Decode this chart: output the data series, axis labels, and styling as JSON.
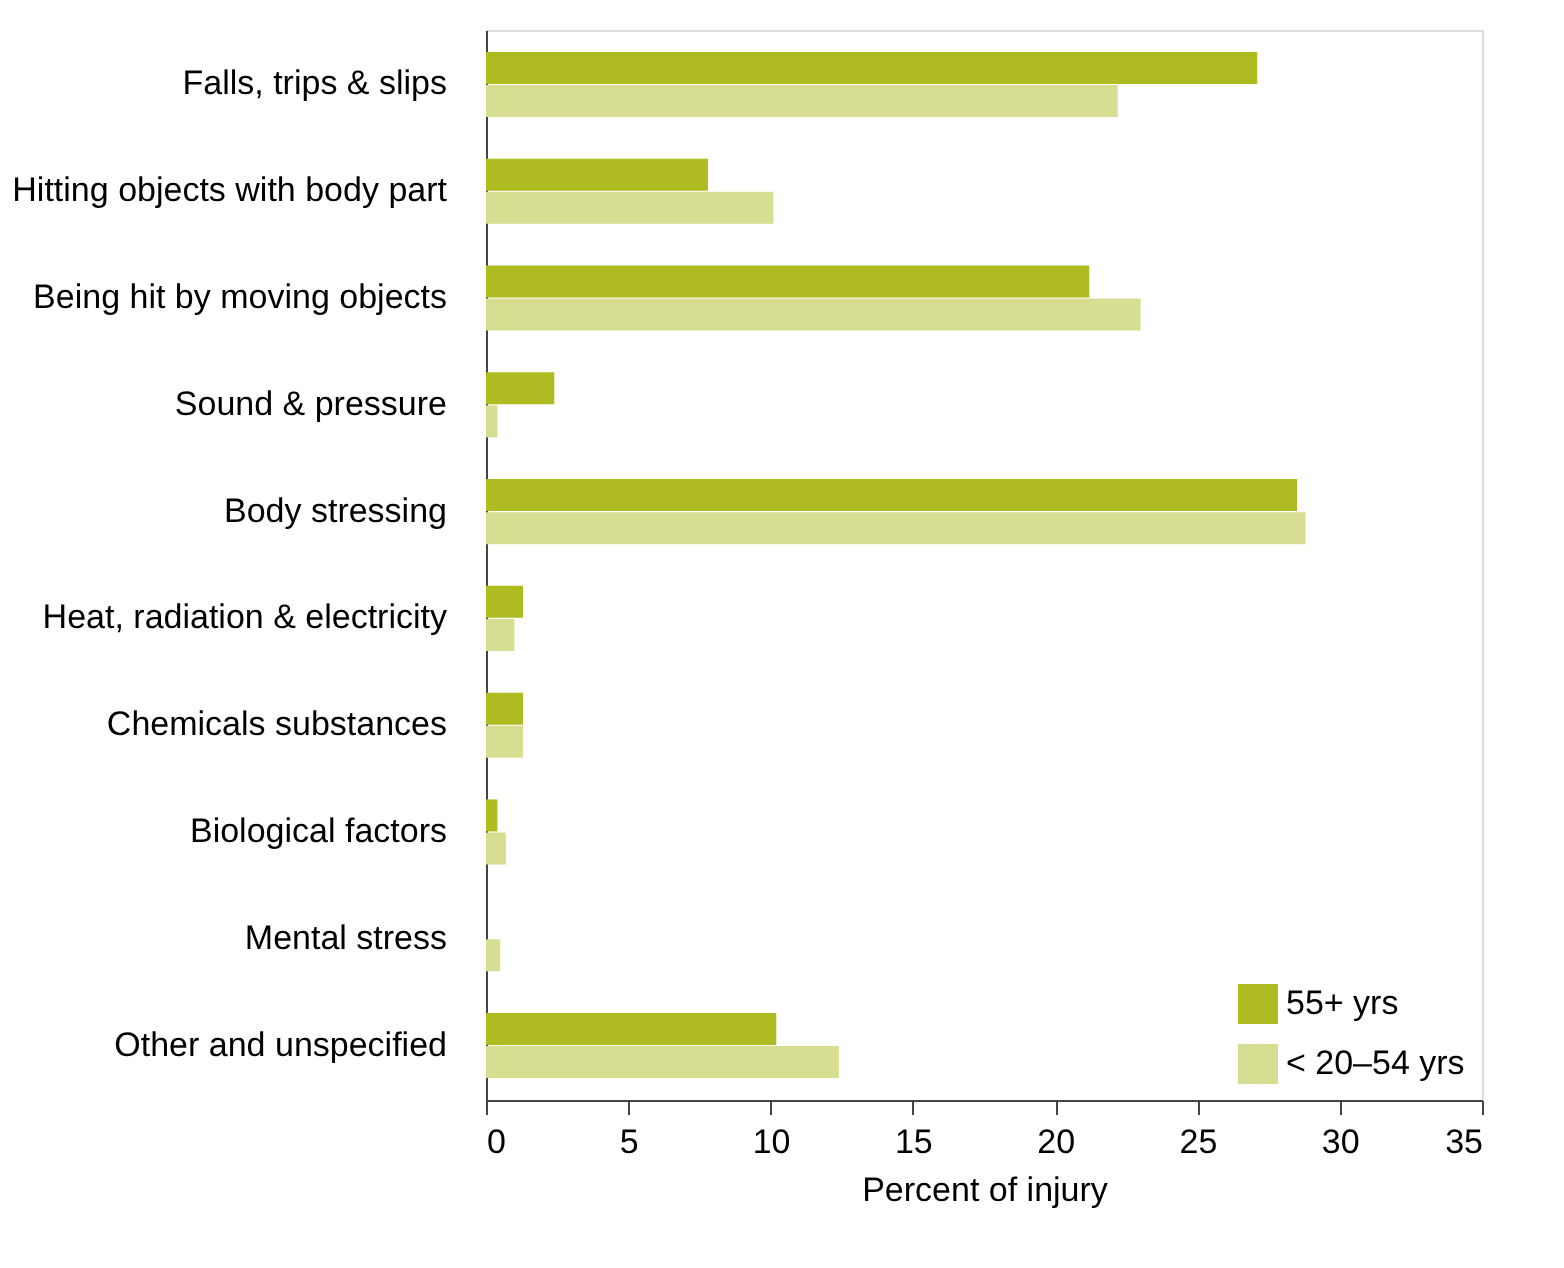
{
  "chart_data": {
    "type": "bar",
    "orientation": "horizontal",
    "xlabel": "Percent of injury",
    "categories": [
      "Falls, trips & slips",
      "Hitting objects with body part",
      "Being  hit by moving objects",
      "Sound & pressure",
      "Body stressing",
      "Heat, radiation & electricity",
      "Chemicals substances",
      "Biological factors",
      "Mental stress",
      "Other and unspecified"
    ],
    "series": [
      {
        "name": "55+ yrs",
        "color": "#aebc21",
        "values": [
          27.1,
          7.8,
          21.2,
          2.4,
          28.5,
          1.3,
          1.3,
          0.4,
          0,
          10.2
        ]
      },
      {
        "name": "< 20–54 yrs",
        "color": "#d7de92",
        "values": [
          22.2,
          10.1,
          23.0,
          0.4,
          28.8,
          1.0,
          1.3,
          0.7,
          0.5,
          12.4
        ]
      }
    ],
    "xlim": [
      0,
      35
    ],
    "xticks": [
      0,
      5,
      10,
      15,
      20,
      25,
      30,
      35
    ],
    "grid": false,
    "legend": "bottom right"
  }
}
